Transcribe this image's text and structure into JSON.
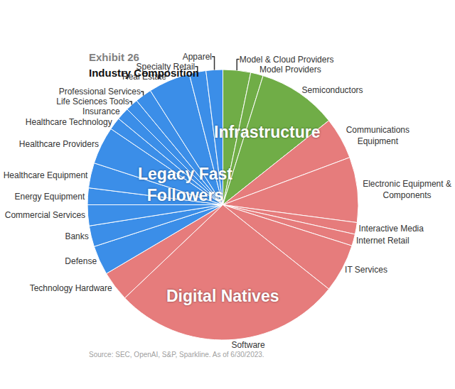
{
  "chart_data": {
    "type": "pie",
    "title": "Exhibit 26",
    "subtitle": "Industry Composition",
    "source": "Source: SEC, OpenAI, S&P, Sparkline. As of 6/30/2023.",
    "annotations": [
      "Infrastructure",
      "Legacy Fast Followers",
      "Digital Natives"
    ],
    "categories": [
      "Model & Cloud Providers",
      "Model Providers",
      "Semiconductors",
      "Communications Equipment",
      "Electronic Equipment & Components",
      "Interactive Media",
      "Internet Retail",
      "IT Services",
      "Software",
      "Technology Hardware",
      "Defense",
      "Banks",
      "Commercial Services",
      "Energy Equipment",
      "Healthcare Equipment",
      "Healthcare Providers",
      "Healthcare Technology",
      "Insurance",
      "Life Sciences Tools",
      "Professional Services",
      "Real Estate",
      "Specialty Retail",
      "Apparel"
    ],
    "values": [
      3.3,
      1.5,
      9.5,
      5.0,
      7.8,
      1.4,
      1.4,
      5.8,
      27.2,
      3.6,
      3.5,
      2.5,
      2.5,
      2.0,
      3.0,
      4.5,
      1.5,
      1.5,
      1.5,
      2.0,
      5.0,
      2.0,
      2.0
    ],
    "colors": [
      "#70ad47",
      "#70ad47",
      "#70ad47",
      "#e67c7c",
      "#e67c7c",
      "#e67c7c",
      "#e67c7c",
      "#e67c7c",
      "#e67c7c",
      "#e67c7c",
      "#3b8ee8",
      "#3b8ee8",
      "#3b8ee8",
      "#3b8ee8",
      "#3b8ee8",
      "#3b8ee8",
      "#3b8ee8",
      "#3b8ee8",
      "#3b8ee8",
      "#3b8ee8",
      "#3b8ee8",
      "#3b8ee8",
      "#3b8ee8"
    ],
    "data_labels": false
  }
}
